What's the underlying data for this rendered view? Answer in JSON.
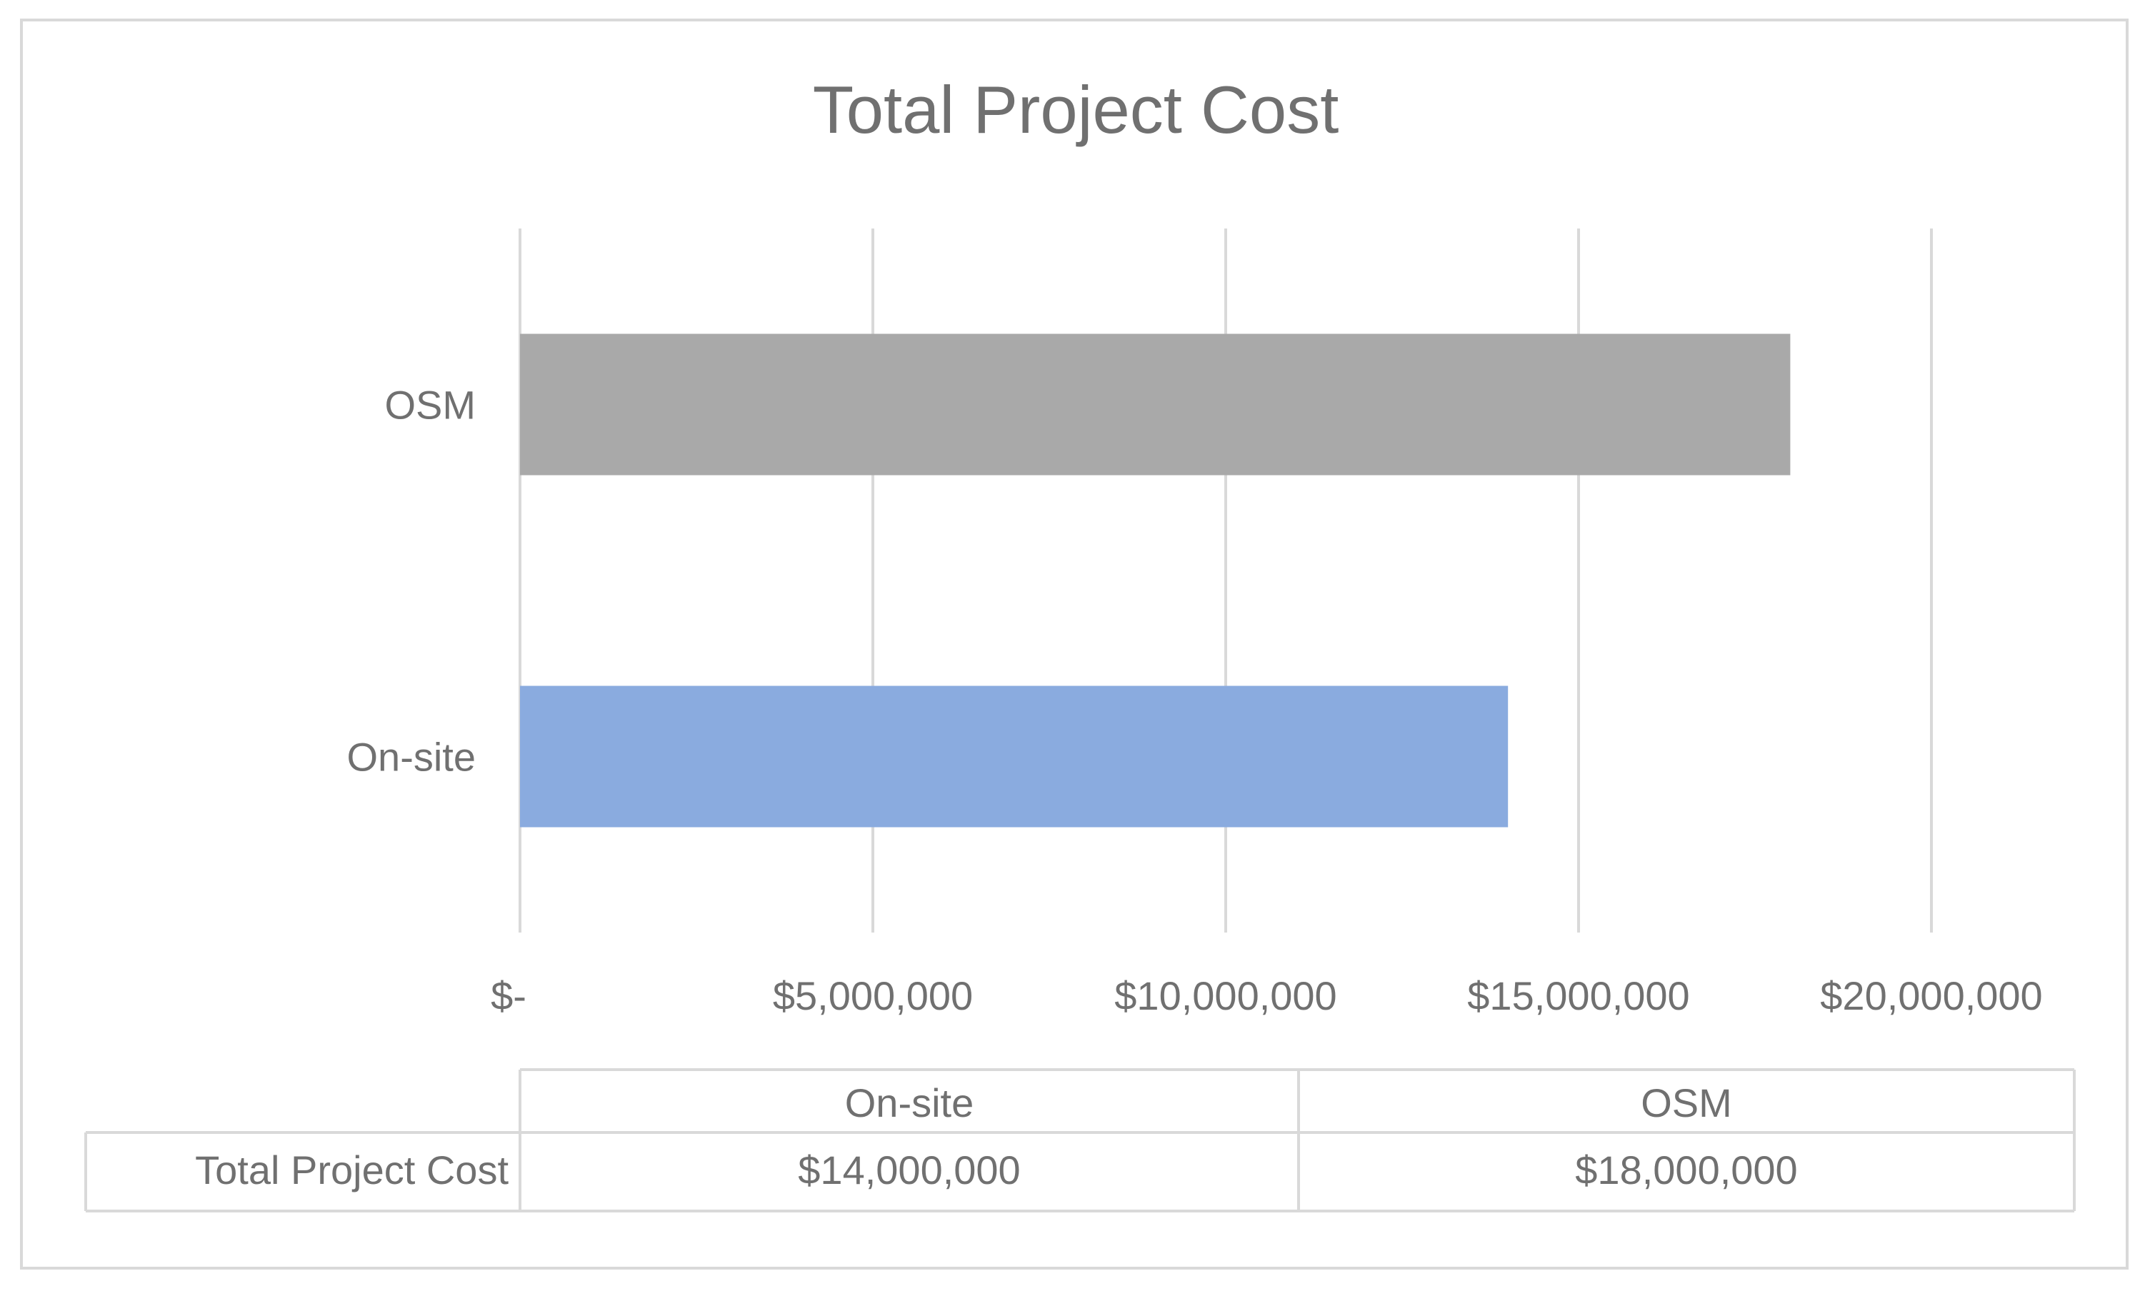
{
  "chart_data": {
    "type": "bar",
    "orientation": "horizontal",
    "title": "Total Project Cost",
    "categories": [
      "OSM",
      "On-site"
    ],
    "series": [
      {
        "name": "Total Project Cost",
        "values": [
          18000000,
          14000000
        ],
        "colors": [
          "#a9a9a9",
          "#8aabdf"
        ]
      }
    ],
    "x_ticks": [
      {
        "value": 0,
        "label": "$-"
      },
      {
        "value": 5000000,
        "label": "$5,000,000"
      },
      {
        "value": 10000000,
        "label": "$10,000,000"
      },
      {
        "value": 15000000,
        "label": "$15,000,000"
      },
      {
        "value": 20000000,
        "label": "$20,000,000"
      }
    ],
    "xlim": [
      0,
      20000000
    ],
    "grid": true,
    "legend": "none",
    "data_table": {
      "columns": [
        "On-site",
        "OSM"
      ],
      "rows": [
        {
          "label": "Total Project Cost",
          "values": [
            "$14,000,000",
            "$18,000,000"
          ]
        }
      ]
    }
  }
}
